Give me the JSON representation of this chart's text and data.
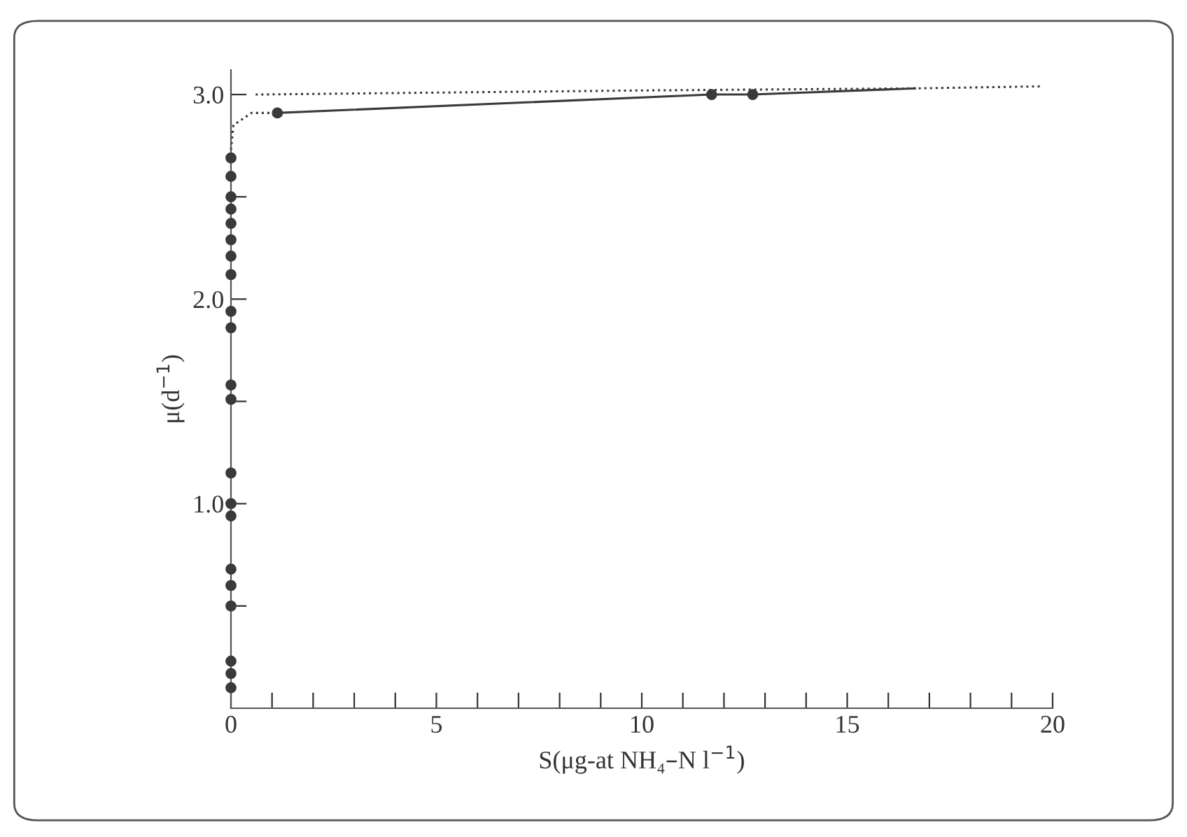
{
  "chart_data": {
    "type": "scatter",
    "xlabel": "S(μg-at NH₄–N l$^{−1}$)",
    "ylabel": "μ(d$^{−1}$)",
    "xlim": [
      0,
      20
    ],
    "ylim": [
      0,
      3.12
    ],
    "xticks": [
      0,
      {
        "value": 1,
        "label": null
      },
      {
        "value": 2,
        "label": null
      },
      {
        "value": 3,
        "label": null
      },
      {
        "value": 4,
        "label": null
      },
      5,
      {
        "value": 6,
        "label": null
      },
      {
        "value": 7,
        "label": null
      },
      {
        "value": 8,
        "label": null
      },
      {
        "value": 9,
        "label": null
      },
      10,
      {
        "value": 11,
        "label": null
      },
      {
        "value": 12,
        "label": null
      },
      {
        "value": 13,
        "label": null
      },
      {
        "value": 14,
        "label": null
      },
      15,
      {
        "value": 16,
        "label": null
      },
      {
        "value": 17,
        "label": null
      },
      {
        "value": 18,
        "label": null
      },
      {
        "value": 19,
        "label": null
      },
      20
    ],
    "yticks": [
      {
        "value": 0.5,
        "label": null
      },
      {
        "value": 1.0,
        "label": "1.0"
      },
      {
        "value": 1.5,
        "label": null
      },
      {
        "value": 2.0,
        "label": "2.0"
      },
      {
        "value": 2.5,
        "label": null
      },
      {
        "value": 3.0,
        "label": "3.0"
      }
    ],
    "grid": false,
    "legend": false,
    "series": [
      {
        "color": "#3a3a3a",
        "marker": "circle",
        "x": [
          0,
          0,
          0,
          0,
          0,
          0,
          0,
          0,
          0,
          0,
          0,
          0,
          0,
          0,
          0,
          0,
          0,
          0,
          0,
          0,
          0,
          1.13,
          11.7,
          12.7
        ],
        "values": [
          0.1,
          0.17,
          0.23,
          0.5,
          0.6,
          0.68,
          0.94,
          1.0,
          1.15,
          1.51,
          1.58,
          1.86,
          1.94,
          2.12,
          2.21,
          2.29,
          2.37,
          2.44,
          2.5,
          2.6,
          2.69,
          2.91,
          3.0,
          3.0
        ]
      },
      {
        "type": "line",
        "color": "#3a3a3a",
        "line_style": "solid",
        "marker": "none",
        "x": [
          1.13,
          11.7,
          12.7,
          16.65
        ],
        "values": [
          2.91,
          3.0,
          3.0,
          3.03
        ]
      },
      {
        "type": "line",
        "color": "#3a3a3a",
        "line_style": "dotted",
        "marker": "none",
        "x": [
          0,
          0.06,
          0.5,
          1.13
        ],
        "values": [
          2.73,
          2.85,
          2.91,
          2.91
        ]
      },
      {
        "type": "line",
        "color": "#3a3a3a",
        "line_style": "dotted",
        "marker": "none",
        "x": [
          0.6,
          10,
          16.65,
          19.7
        ],
        "values": [
          3.0,
          3.02,
          3.03,
          3.04
        ]
      }
    ]
  }
}
